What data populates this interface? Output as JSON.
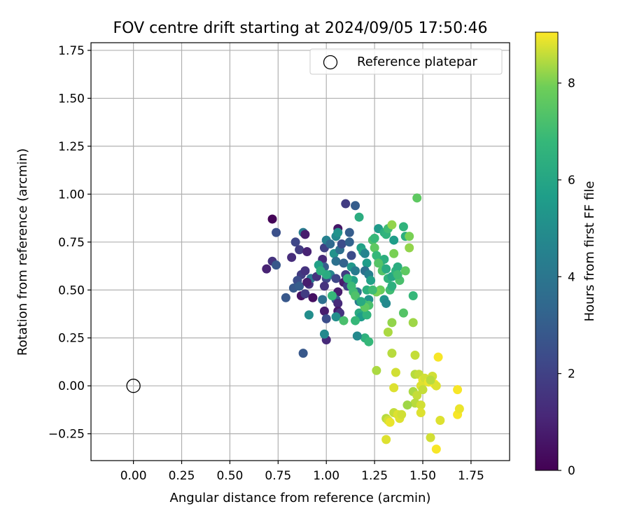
{
  "chart_data": {
    "type": "scatter",
    "title": "FOV centre drift starting at 2024/09/05 17:50:46",
    "xlabel": "Angular distance from reference (arcmin)",
    "ylabel": "Rotation from reference (arcmin)",
    "xlim": [
      -0.22,
      1.95
    ],
    "ylim": [
      -0.39,
      1.79
    ],
    "xticks": [
      "0.00",
      "0.25",
      "0.50",
      "0.75",
      "1.00",
      "1.25",
      "1.50",
      "1.75"
    ],
    "yticks": [
      "−0.25",
      "0.00",
      "0.25",
      "0.50",
      "0.75",
      "1.00",
      "1.25",
      "1.50",
      "1.75"
    ],
    "grid": true,
    "legend": {
      "placement": "top-right",
      "entries": [
        "Reference platepar"
      ]
    },
    "reference_point": {
      "x": 0.0,
      "y": 0.0,
      "marker": "open-circle"
    },
    "colorbar": {
      "label": "Hours from first FF file",
      "min": 0,
      "max": 9.05,
      "ticks": [
        "0",
        "2",
        "4",
        "6",
        "8"
      ],
      "colormap": "viridis"
    },
    "points": [
      [
        0.72,
        0.87,
        0.1
      ],
      [
        0.74,
        0.8,
        2.5
      ],
      [
        0.72,
        0.65,
        1.5
      ],
      [
        0.74,
        0.63,
        2.8
      ],
      [
        0.69,
        0.61,
        1.0
      ],
      [
        0.79,
        0.46,
        2.8
      ],
      [
        0.88,
        0.17,
        2.8
      ],
      [
        0.84,
        0.75,
        2.2
      ],
      [
        0.86,
        0.71,
        1.8
      ],
      [
        0.88,
        0.8,
        4.2
      ],
      [
        0.89,
        0.79,
        0.8
      ],
      [
        0.9,
        0.7,
        1.0
      ],
      [
        0.82,
        0.67,
        1.3
      ],
      [
        0.87,
        0.58,
        1.8
      ],
      [
        0.89,
        0.6,
        1.5
      ],
      [
        0.85,
        0.55,
        2.4
      ],
      [
        0.83,
        0.51,
        2.8
      ],
      [
        0.86,
        0.52,
        3.0
      ],
      [
        0.87,
        0.47,
        0.5
      ],
      [
        0.89,
        0.48,
        1.8
      ],
      [
        0.91,
        0.53,
        1.5
      ],
      [
        0.92,
        0.56,
        4.0
      ],
      [
        0.9,
        0.54,
        0.8
      ],
      [
        0.93,
        0.46,
        0.4
      ],
      [
        0.95,
        0.57,
        1.5
      ],
      [
        0.98,
        0.66,
        1.2
      ],
      [
        0.99,
        0.72,
        2.0
      ],
      [
        1.0,
        0.76,
        4.5
      ],
      [
        1.02,
        0.74,
        3.5
      ],
      [
        0.99,
        0.62,
        3.0
      ],
      [
        1.0,
        0.56,
        2.2
      ],
      [
        1.02,
        0.58,
        4.6
      ],
      [
        0.99,
        0.52,
        1.5
      ],
      [
        0.98,
        0.45,
        3.7
      ],
      [
        0.99,
        0.39,
        0.8
      ],
      [
        1.0,
        0.35,
        2.4
      ],
      [
        1.0,
        0.24,
        1.2
      ],
      [
        0.99,
        0.27,
        4.8
      ],
      [
        0.91,
        0.37,
        5.0
      ],
      [
        0.96,
        0.63,
        5.8
      ],
      [
        1.04,
        0.69,
        5.2
      ],
      [
        1.05,
        0.65,
        3.8
      ],
      [
        1.05,
        0.56,
        2.2
      ],
      [
        1.06,
        0.49,
        0.8
      ],
      [
        1.05,
        0.45,
        2.8
      ],
      [
        1.06,
        0.43,
        1.2
      ],
      [
        1.06,
        0.39,
        0.7
      ],
      [
        1.07,
        0.38,
        1.5
      ],
      [
        1.05,
        0.36,
        5.0
      ],
      [
        1.06,
        0.82,
        0.6
      ],
      [
        1.05,
        0.78,
        4.8
      ],
      [
        1.06,
        0.8,
        5.2
      ],
      [
        1.07,
        0.71,
        3.7
      ],
      [
        1.08,
        0.74,
        2.4
      ],
      [
        1.09,
        0.64,
        3.2
      ],
      [
        1.1,
        0.58,
        1.8
      ],
      [
        1.09,
        0.54,
        0.8
      ],
      [
        1.11,
        0.52,
        2.0
      ],
      [
        1.1,
        0.95,
        1.8
      ],
      [
        1.15,
        0.94,
        3.0
      ],
      [
        1.12,
        0.8,
        3.0
      ],
      [
        1.12,
        0.75,
        3.2
      ],
      [
        1.13,
        0.68,
        2.4
      ],
      [
        1.13,
        0.62,
        5.4
      ],
      [
        1.15,
        0.6,
        4.2
      ],
      [
        1.14,
        0.55,
        5.8
      ],
      [
        1.16,
        0.49,
        3.8
      ],
      [
        1.17,
        0.44,
        4.2
      ],
      [
        1.17,
        0.38,
        6.2
      ],
      [
        1.18,
        0.36,
        5.6
      ],
      [
        1.15,
        0.34,
        6.8
      ],
      [
        1.17,
        0.88,
        6.3
      ],
      [
        1.18,
        0.72,
        5.8
      ],
      [
        1.19,
        0.7,
        6.0
      ],
      [
        1.2,
        0.69,
        4.6
      ],
      [
        1.21,
        0.64,
        5.6
      ],
      [
        1.2,
        0.6,
        3.8
      ],
      [
        1.22,
        0.58,
        4.4
      ],
      [
        1.23,
        0.55,
        5.8
      ],
      [
        1.21,
        0.5,
        6.4
      ],
      [
        1.22,
        0.45,
        5.2
      ],
      [
        1.22,
        0.42,
        7.2
      ],
      [
        1.21,
        0.37,
        6.6
      ],
      [
        1.2,
        0.25,
        6.5
      ],
      [
        1.22,
        0.23,
        6.8
      ],
      [
        1.16,
        0.26,
        4.8
      ],
      [
        1.24,
        0.76,
        7.2
      ],
      [
        1.25,
        0.77,
        6.8
      ],
      [
        1.25,
        0.72,
        7.6
      ],
      [
        1.26,
        0.68,
        6.8
      ],
      [
        1.27,
        0.82,
        5.5
      ],
      [
        1.28,
        0.64,
        7.0
      ],
      [
        1.29,
        0.6,
        7.4
      ],
      [
        1.3,
        0.8,
        6.4
      ],
      [
        1.31,
        0.79,
        6.6
      ],
      [
        1.32,
        0.82,
        7.0
      ],
      [
        1.3,
        0.66,
        6.4
      ],
      [
        1.31,
        0.61,
        6.2
      ],
      [
        1.32,
        0.56,
        6.6
      ],
      [
        1.33,
        0.5,
        7.0
      ],
      [
        1.34,
        0.57,
        6.0
      ],
      [
        1.34,
        0.52,
        6.4
      ],
      [
        1.3,
        0.45,
        5.2
      ],
      [
        1.31,
        0.43,
        4.8
      ],
      [
        1.34,
        0.84,
        8.2
      ],
      [
        1.35,
        0.76,
        5.6
      ],
      [
        1.35,
        0.69,
        8.0
      ],
      [
        1.36,
        0.6,
        6.6
      ],
      [
        1.37,
        0.62,
        6.3
      ],
      [
        1.38,
        0.55,
        7.2
      ],
      [
        1.37,
        0.58,
        7.0
      ],
      [
        1.4,
        0.83,
        6.6
      ],
      [
        1.41,
        0.78,
        6.4
      ],
      [
        1.43,
        0.78,
        8.0
      ],
      [
        1.43,
        0.72,
        8.2
      ],
      [
        1.41,
        0.6,
        7.6
      ],
      [
        1.4,
        0.38,
        7.4
      ],
      [
        1.45,
        0.47,
        6.8
      ],
      [
        1.47,
        0.98,
        7.6
      ],
      [
        1.27,
        0.64,
        7.4
      ],
      [
        1.28,
        0.5,
        7.8
      ],
      [
        1.26,
        0.49,
        8.0
      ],
      [
        1.19,
        0.43,
        7.0
      ],
      [
        1.2,
        0.41,
        7.6
      ],
      [
        1.09,
        0.34,
        7.2
      ],
      [
        1.11,
        0.56,
        6.6
      ],
      [
        1.13,
        0.52,
        6.9
      ],
      [
        1.14,
        0.49,
        7.0
      ],
      [
        1.15,
        0.47,
        7.3
      ],
      [
        1.03,
        0.47,
        6.8
      ],
      [
        1.0,
        0.58,
        6.2
      ],
      [
        0.97,
        0.6,
        6.4
      ],
      [
        1.24,
        0.5,
        7.0
      ],
      [
        1.18,
        0.44,
        6.2
      ],
      [
        1.32,
        0.28,
        8.4
      ],
      [
        1.34,
        0.33,
        8.2
      ],
      [
        1.34,
        0.17,
        8.5
      ],
      [
        1.45,
        0.33,
        8.3
      ],
      [
        1.46,
        0.16,
        8.6
      ],
      [
        1.26,
        0.08,
        8.4
      ],
      [
        1.36,
        0.07,
        8.7
      ],
      [
        1.35,
        -0.01,
        8.8
      ],
      [
        1.46,
        0.06,
        8.5
      ],
      [
        1.48,
        0.06,
        8.6
      ],
      [
        1.5,
        0.03,
        8.9
      ],
      [
        1.51,
        0.04,
        8.7
      ],
      [
        1.49,
        0.0,
        8.8
      ],
      [
        1.5,
        -0.02,
        8.6
      ],
      [
        1.53,
        0.02,
        8.9
      ],
      [
        1.55,
        0.05,
        8.7
      ],
      [
        1.56,
        0.01,
        9.0
      ],
      [
        1.58,
        0.15,
        9.0
      ],
      [
        1.57,
        0.0,
        8.8
      ],
      [
        1.45,
        -0.03,
        8.4
      ],
      [
        1.47,
        -0.05,
        8.6
      ],
      [
        1.46,
        -0.09,
        8.5
      ],
      [
        1.49,
        -0.1,
        8.7
      ],
      [
        1.42,
        -0.1,
        8.3
      ],
      [
        1.35,
        -0.14,
        8.6
      ],
      [
        1.37,
        -0.15,
        8.8
      ],
      [
        1.38,
        -0.17,
        8.8
      ],
      [
        1.39,
        -0.15,
        8.7
      ],
      [
        1.31,
        -0.17,
        8.5
      ],
      [
        1.32,
        -0.18,
        8.7
      ],
      [
        1.33,
        -0.19,
        8.9
      ],
      [
        1.49,
        -0.14,
        8.8
      ],
      [
        1.59,
        -0.18,
        8.8
      ],
      [
        1.54,
        -0.27,
        8.7
      ],
      [
        1.57,
        -0.33,
        9.0
      ],
      [
        1.31,
        -0.28,
        8.8
      ],
      [
        1.68,
        -0.02,
        9.0
      ],
      [
        1.68,
        -0.15,
        9.0
      ],
      [
        1.69,
        -0.12,
        8.9
      ],
      [
        1.54,
        0.03,
        8.5
      ]
    ]
  }
}
